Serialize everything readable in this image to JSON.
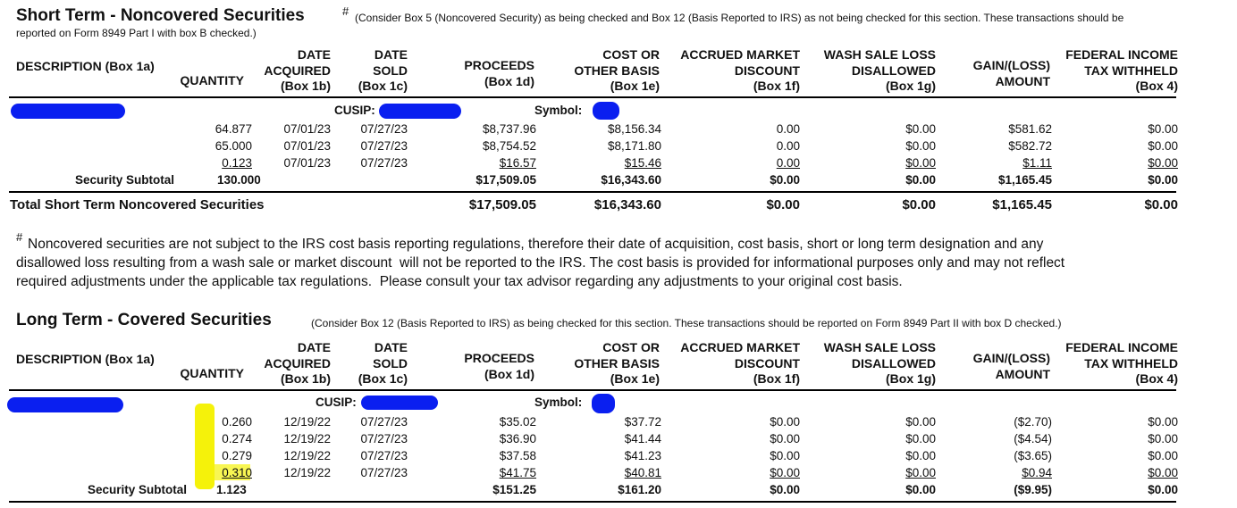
{
  "sections": [
    {
      "title": "Short Term - Noncovered Securities",
      "mark": "#",
      "note": [
        "(Consider Box 5 (Noncovered Security) as being checked and Box 12 (Basis Reported to IRS) as not being checked for this section. These transactions should be",
        "reported on Form 8949 Part I with box B checked.)"
      ],
      "headers": [
        [
          "DESCRIPTION (Box 1a)"
        ],
        [
          "QUANTITY"
        ],
        [
          "DATE",
          "ACQUIRED",
          "(Box 1b)"
        ],
        [
          "DATE",
          "SOLD",
          "(Box 1c)"
        ],
        [
          "PROCEEDS",
          "(Box 1d)"
        ],
        [
          "COST OR",
          "OTHER BASIS",
          "(Box 1e)"
        ],
        [
          "ACCRUED MARKET",
          "DISCOUNT",
          "(Box 1f)"
        ],
        [
          "WASH SALE LOSS",
          "DISALLOWED",
          "(Box 1g)"
        ],
        [
          "GAIN/(LOSS)",
          "AMOUNT"
        ],
        [
          "FEDERAL INCOME",
          "TAX WITHHELD",
          "(Box 4)"
        ]
      ],
      "cusip_label": "CUSIP:",
      "symbol_label": "Symbol:",
      "rows": [
        [
          "64.877",
          "07/01/23",
          "07/27/23",
          "$8,737.96",
          "$8,156.34",
          "0.00",
          "$0.00",
          "$581.62",
          "$0.00"
        ],
        [
          "65.000",
          "07/01/23",
          "07/27/23",
          "$8,754.52",
          "$8,171.80",
          "0.00",
          "$0.00",
          "$582.72",
          "$0.00"
        ],
        [
          "0.123",
          "07/01/23",
          "07/27/23",
          "$16.57",
          "$15.46",
          "0.00",
          "$0.00",
          "$1.11",
          "$0.00"
        ]
      ],
      "subtotal_label": "Security Subtotal",
      "subtotal": [
        "130.000",
        "$17,509.05",
        "$16,343.60",
        "$0.00",
        "$0.00",
        "$1,165.45",
        "$0.00"
      ],
      "total_label": "Total Short Term Noncovered Securities",
      "total": [
        "$17,509.05",
        "$16,343.60",
        "$0.00",
        "$0.00",
        "$1,165.45",
        "$0.00"
      ]
    },
    {
      "title": "Long Term - Covered Securities",
      "note": [
        "(Consider Box 12 (Basis Reported to IRS) as being checked for this section. These transactions should be reported on Form 8949 Part II with box D checked.)"
      ],
      "headers": [
        [
          "DESCRIPTION (Box 1a)"
        ],
        [
          "QUANTITY"
        ],
        [
          "DATE",
          "ACQUIRED",
          "(Box 1b)"
        ],
        [
          "DATE",
          "SOLD",
          "(Box 1c)"
        ],
        [
          "PROCEEDS",
          "(Box 1d)"
        ],
        [
          "COST OR",
          "OTHER BASIS",
          "(Box 1e)"
        ],
        [
          "ACCRUED MARKET",
          "DISCOUNT",
          "(Box 1f)"
        ],
        [
          "WASH SALE LOSS",
          "DISALLOWED",
          "(Box 1g)"
        ],
        [
          "GAIN/(LOSS)",
          "AMOUNT"
        ],
        [
          "FEDERAL INCOME",
          "TAX WITHHELD",
          "(Box 4)"
        ]
      ],
      "cusip_label": "CUSIP:",
      "symbol_label": "Symbol:",
      "rows": [
        [
          "0.260",
          "12/19/22",
          "07/27/23",
          "$35.02",
          "$37.72",
          "$0.00",
          "$0.00",
          "($2.70)",
          "$0.00"
        ],
        [
          "0.274",
          "12/19/22",
          "07/27/23",
          "$36.90",
          "$41.44",
          "$0.00",
          "$0.00",
          "($4.54)",
          "$0.00"
        ],
        [
          "0.279",
          "12/19/22",
          "07/27/23",
          "$37.58",
          "$41.23",
          "$0.00",
          "$0.00",
          "($3.65)",
          "$0.00"
        ],
        [
          "0.310",
          "12/19/22",
          "07/27/23",
          "$41.75",
          "$40.81",
          "$0.00",
          "$0.00",
          "$0.94",
          "$0.00"
        ]
      ],
      "subtotal_label": "Security Subtotal",
      "subtotal": [
        "1.123",
        "$151.25",
        "$161.20",
        "$0.00",
        "$0.00",
        "($9.95)",
        "$0.00"
      ]
    }
  ],
  "footnote": {
    "mark": "#",
    "lines": [
      "Noncovered securities are not subject to the IRS cost basis reporting regulations, therefore their date of acquisition, cost basis, short or long term designation and any",
      "disallowed loss resulting from a wash sale or market discount  will not be reported to the IRS. The cost basis is provided for informational purposes only and may not reflect",
      "required adjustments under the applicable tax regulations.  Please consult your tax advisor regarding any adjustments to your original cost basis."
    ]
  }
}
